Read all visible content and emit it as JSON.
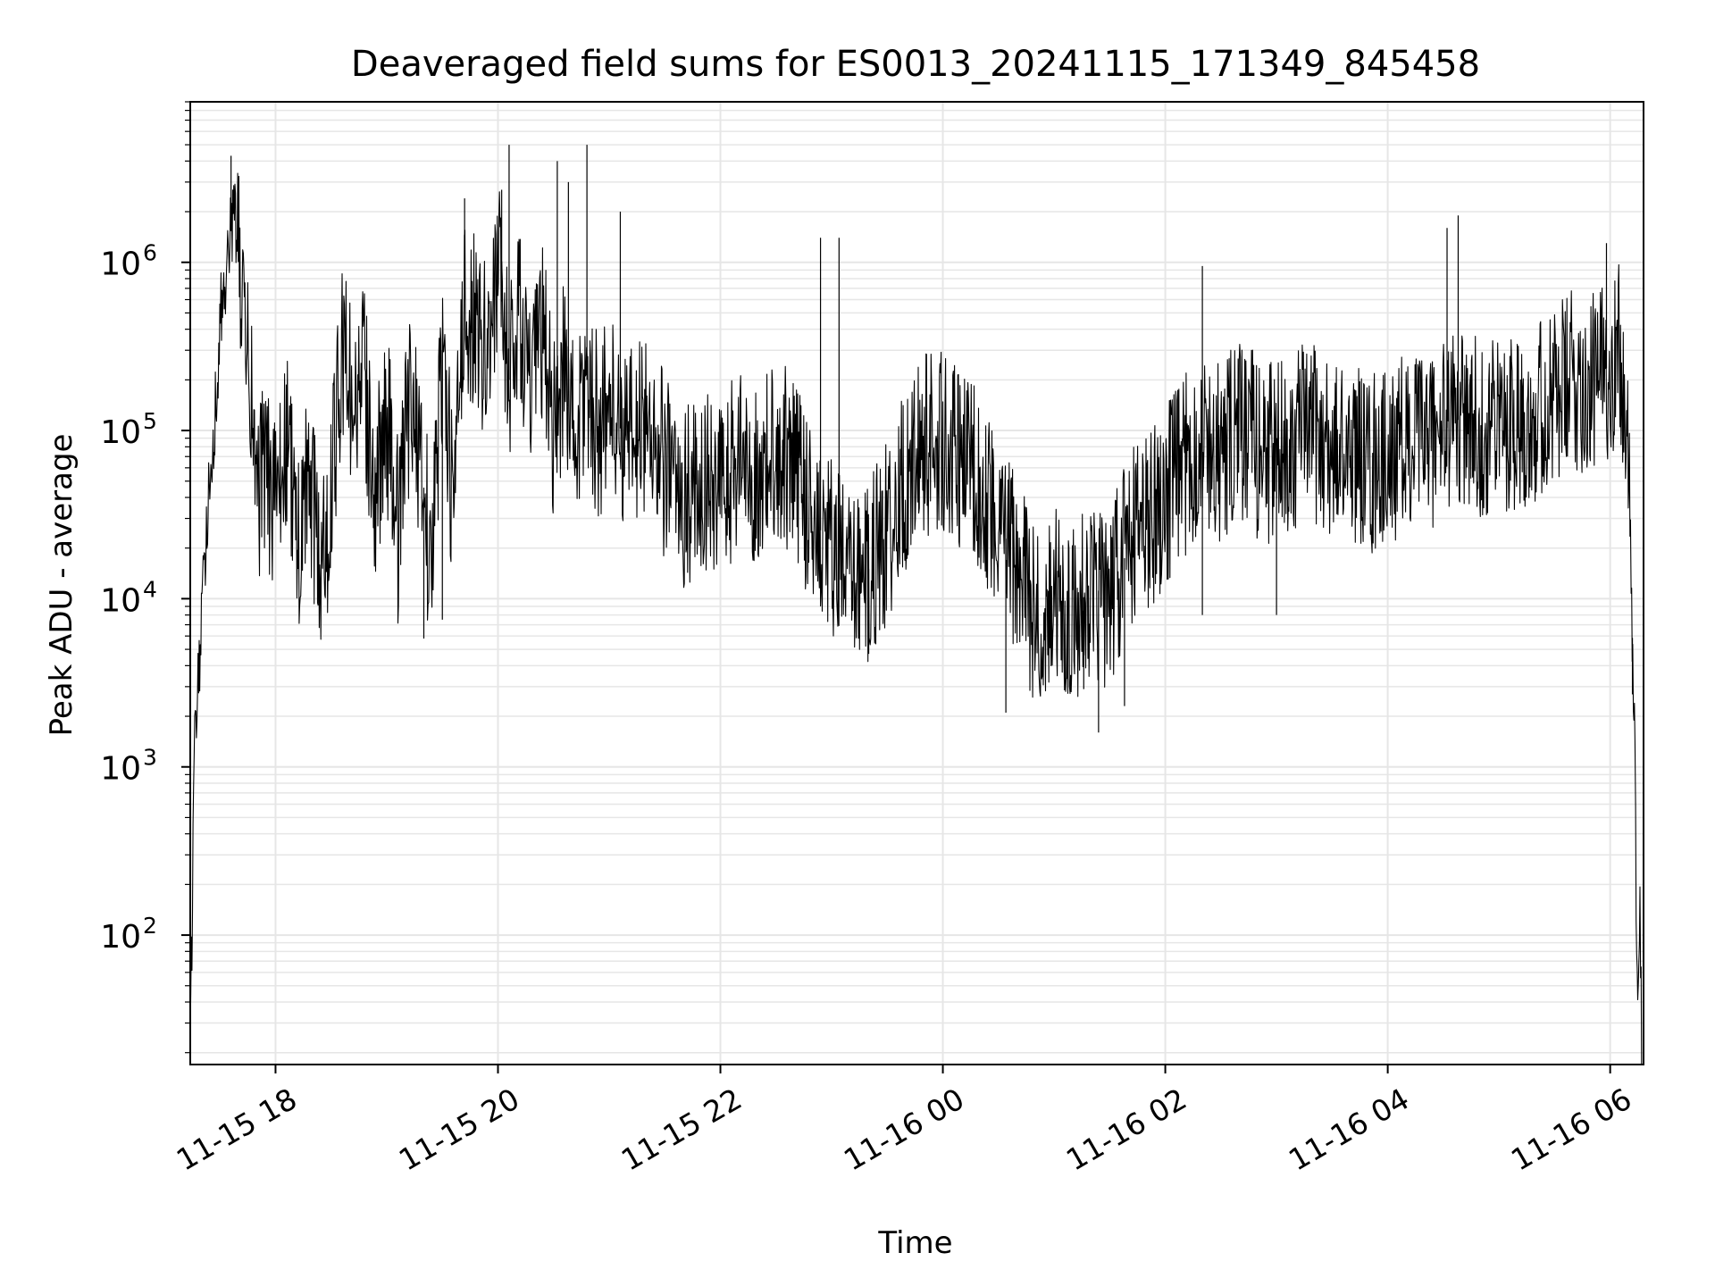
{
  "chart_data": {
    "type": "line",
    "title": "Deaveraged field sums for ES0013_20241115_171349_845458",
    "xlabel": "Time",
    "ylabel": "Peak ADU - average",
    "y_scale": "log",
    "ylim": [
      17,
      9000000
    ],
    "xlim": [
      "2024-11-15 17:14",
      "2024-11-16 06:18"
    ],
    "grid": true,
    "legend": "none",
    "line_color": "#000000",
    "grid_color": "#e6e6e6",
    "x_ticks": [
      {
        "t": "2024-11-15 18:00",
        "label": "11-15 18"
      },
      {
        "t": "2024-11-15 20:00",
        "label": "11-15 20"
      },
      {
        "t": "2024-11-15 22:00",
        "label": "11-15 22"
      },
      {
        "t": "2024-11-16 00:00",
        "label": "11-16 00"
      },
      {
        "t": "2024-11-16 02:00",
        "label": "11-16 02"
      },
      {
        "t": "2024-11-16 04:00",
        "label": "11-16 04"
      },
      {
        "t": "2024-11-16 06:00",
        "label": "11-16 06"
      }
    ],
    "y_ticks": [
      {
        "value": 100,
        "base": "10",
        "exp": "2"
      },
      {
        "value": 1000,
        "base": "10",
        "exp": "3"
      },
      {
        "value": 10000,
        "base": "10",
        "exp": "4"
      },
      {
        "value": 100000,
        "base": "10",
        "exp": "5"
      },
      {
        "value": 1000000,
        "base": "10",
        "exp": "6"
      }
    ],
    "series": [
      {
        "points": [
          [
            "2024-11-15 17:14",
            20
          ],
          [
            "2024-11-15 17:15",
            130
          ],
          [
            "2024-11-15 17:16",
            1000
          ],
          [
            "2024-11-15 17:18",
            3000
          ],
          [
            "2024-11-15 17:20",
            6000
          ],
          [
            "2024-11-15 17:22",
            20000
          ],
          [
            "2024-11-15 17:25",
            60000
          ],
          [
            "2024-11-15 17:28",
            150000
          ],
          [
            "2024-11-15 17:31",
            600000
          ],
          [
            "2024-11-15 17:34",
            900000
          ],
          [
            "2024-11-15 17:37",
            2000000
          ],
          [
            "2024-11-15 17:39",
            1500000
          ],
          [
            "2024-11-15 17:41",
            800000
          ],
          [
            "2024-11-15 17:44",
            300000
          ],
          [
            "2024-11-15 17:47",
            150000
          ],
          [
            "2024-11-15 17:50",
            40000
          ],
          [
            "2024-11-15 17:55",
            60000
          ],
          [
            "2024-11-15 18:00",
            30000
          ],
          [
            "2024-11-15 18:06",
            90000
          ],
          [
            "2024-11-15 18:12",
            20000
          ],
          [
            "2024-11-15 18:18",
            50000
          ],
          [
            "2024-11-15 18:24",
            15000
          ],
          [
            "2024-11-15 18:30",
            40000
          ],
          [
            "2024-11-15 18:36",
            300000
          ],
          [
            "2024-11-15 18:42",
            150000
          ],
          [
            "2024-11-15 18:48",
            200000
          ],
          [
            "2024-11-15 18:54",
            40000
          ],
          [
            "2024-11-15 19:00",
            120000
          ],
          [
            "2024-11-15 19:06",
            25000
          ],
          [
            "2024-11-15 19:12",
            150000
          ],
          [
            "2024-11-15 19:18",
            80000
          ],
          [
            "2024-11-15 19:24",
            15000
          ],
          [
            "2024-11-15 19:30",
            300000
          ],
          [
            "2024-11-15 19:36",
            30000
          ],
          [
            "2024-11-15 19:42",
            600000
          ],
          [
            "2024-11-15 19:48",
            400000
          ],
          [
            "2024-11-15 19:54",
            300000
          ],
          [
            "2024-11-15 20:00",
            1000000
          ],
          [
            "2024-11-15 20:06",
            200000
          ],
          [
            "2024-11-15 20:12",
            500000
          ],
          [
            "2024-11-15 20:18",
            150000
          ],
          [
            "2024-11-15 20:24",
            400000
          ],
          [
            "2024-11-15 20:30",
            100000
          ],
          [
            "2024-11-15 20:36",
            250000
          ],
          [
            "2024-11-15 20:42",
            80000
          ],
          [
            "2024-11-15 20:48",
            200000
          ],
          [
            "2024-11-15 20:54",
            100000
          ],
          [
            "2024-11-15 21:00",
            150000
          ],
          [
            "2024-11-15 21:10",
            80000
          ],
          [
            "2024-11-15 21:20",
            120000
          ],
          [
            "2024-11-15 21:30",
            60000
          ],
          [
            "2024-11-15 21:40",
            40000
          ],
          [
            "2024-11-15 21:50",
            50000
          ],
          [
            "2024-11-15 22:00",
            40000
          ],
          [
            "2024-11-15 22:10",
            70000
          ],
          [
            "2024-11-15 22:20",
            50000
          ],
          [
            "2024-11-15 22:30",
            80000
          ],
          [
            "2024-11-15 22:40",
            60000
          ],
          [
            "2024-11-15 22:50",
            30000
          ],
          [
            "2024-11-15 23:00",
            20000
          ],
          [
            "2024-11-15 23:10",
            12000
          ],
          [
            "2024-11-15 23:20",
            15000
          ],
          [
            "2024-11-15 23:30",
            25000
          ],
          [
            "2024-11-15 23:40",
            50000
          ],
          [
            "2024-11-15 23:50",
            80000
          ],
          [
            "2024-11-16 00:00",
            90000
          ],
          [
            "2024-11-16 00:10",
            60000
          ],
          [
            "2024-11-16 00:20",
            50000
          ],
          [
            "2024-11-16 00:30",
            30000
          ],
          [
            "2024-11-16 00:40",
            15000
          ],
          [
            "2024-11-16 00:50",
            8000
          ],
          [
            "2024-11-16 01:00",
            10000
          ],
          [
            "2024-11-16 01:10",
            8000
          ],
          [
            "2024-11-16 01:20",
            12000
          ],
          [
            "2024-11-16 01:30",
            10000
          ],
          [
            "2024-11-16 01:40",
            20000
          ],
          [
            "2024-11-16 01:50",
            30000
          ],
          [
            "2024-11-16 02:00",
            40000
          ],
          [
            "2024-11-16 02:10",
            60000
          ],
          [
            "2024-11-16 02:20",
            90000
          ],
          [
            "2024-11-16 02:30",
            70000
          ],
          [
            "2024-11-16 02:40",
            100000
          ],
          [
            "2024-11-16 02:50",
            80000
          ],
          [
            "2024-11-16 03:00",
            70000
          ],
          [
            "2024-11-16 03:10",
            90000
          ],
          [
            "2024-11-16 03:20",
            100000
          ],
          [
            "2024-11-16 03:30",
            70000
          ],
          [
            "2024-11-16 03:40",
            80000
          ],
          [
            "2024-11-16 03:50",
            60000
          ],
          [
            "2024-11-16 04:00",
            70000
          ],
          [
            "2024-11-16 04:10",
            80000
          ],
          [
            "2024-11-16 04:20",
            90000
          ],
          [
            "2024-11-16 04:30",
            100000
          ],
          [
            "2024-11-16 04:40",
            120000
          ],
          [
            "2024-11-16 04:50",
            100000
          ],
          [
            "2024-11-16 05:00",
            110000
          ],
          [
            "2024-11-16 05:10",
            120000
          ],
          [
            "2024-11-16 05:20",
            130000
          ],
          [
            "2024-11-16 05:30",
            150000
          ],
          [
            "2024-11-16 05:40",
            200000
          ],
          [
            "2024-11-16 05:50",
            180000
          ],
          [
            "2024-11-16 06:00",
            250000
          ],
          [
            "2024-11-16 06:05",
            300000
          ],
          [
            "2024-11-16 06:10",
            50000
          ],
          [
            "2024-11-16 06:13",
            2000
          ],
          [
            "2024-11-16 06:15",
            20
          ],
          [
            "2024-11-16 06:16",
            200
          ],
          [
            "2024-11-16 06:17",
            20
          ]
        ]
      }
    ],
    "notable_spikes": [
      [
        "2024-11-15 17:36",
        4300000
      ],
      [
        "2024-11-15 19:42",
        2400000
      ],
      [
        "2024-11-15 20:02",
        2700000
      ],
      [
        "2024-11-15 20:06",
        5000000
      ],
      [
        "2024-11-15 20:32",
        4000000
      ],
      [
        "2024-11-15 20:38",
        3000000
      ],
      [
        "2024-11-15 20:48",
        5000000
      ],
      [
        "2024-11-15 21:06",
        2000000
      ],
      [
        "2024-11-15 22:54",
        1400000
      ],
      [
        "2024-11-15 23:04",
        1400000
      ],
      [
        "2024-11-16 02:20",
        950000
      ],
      [
        "2024-11-16 04:32",
        1600000
      ],
      [
        "2024-11-16 04:38",
        1900000
      ],
      [
        "2024-11-16 05:58",
        1300000
      ]
    ],
    "notable_dips": [
      [
        "2024-11-15 19:20",
        5800
      ],
      [
        "2024-11-15 19:30",
        7500
      ],
      [
        "2024-11-15 23:20",
        4700
      ],
      [
        "2024-11-16 00:34",
        2100
      ],
      [
        "2024-11-16 01:16",
        2900
      ],
      [
        "2024-11-16 01:24",
        1600
      ],
      [
        "2024-11-16 01:38",
        2300
      ],
      [
        "2024-11-16 02:20",
        8000
      ],
      [
        "2024-11-16 03:00",
        8000
      ],
      [
        "2024-11-16 06:12",
        2700
      ]
    ]
  }
}
